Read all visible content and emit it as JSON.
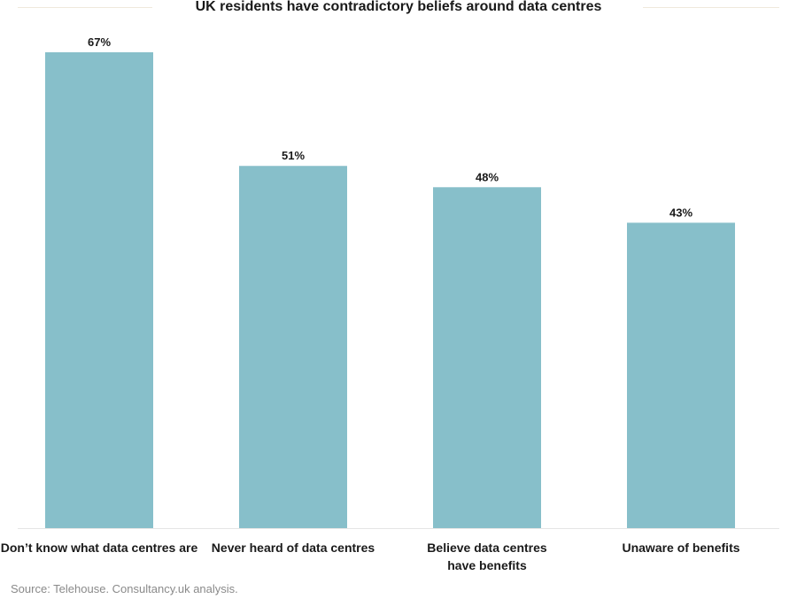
{
  "chart_data": {
    "type": "bar",
    "title": "UK residents have contradictory beliefs around data centres",
    "categories": [
      [
        "Don’t know what data centres are"
      ],
      [
        "Never heard of data centres"
      ],
      [
        "Believe data centres",
        "have benefits"
      ],
      [
        "Unaware of benefits"
      ]
    ],
    "values": [
      67,
      51,
      48,
      43
    ],
    "value_labels": [
      "67%",
      "51%",
      "48%",
      "43%"
    ],
    "unit": "%",
    "ylim": [
      0,
      67
    ],
    "grid": false,
    "legend": "none",
    "bar_color": "#87bfca",
    "xlabel": "",
    "ylabel": ""
  },
  "source": "Source: Telehouse. Consultancy.uk analysis."
}
